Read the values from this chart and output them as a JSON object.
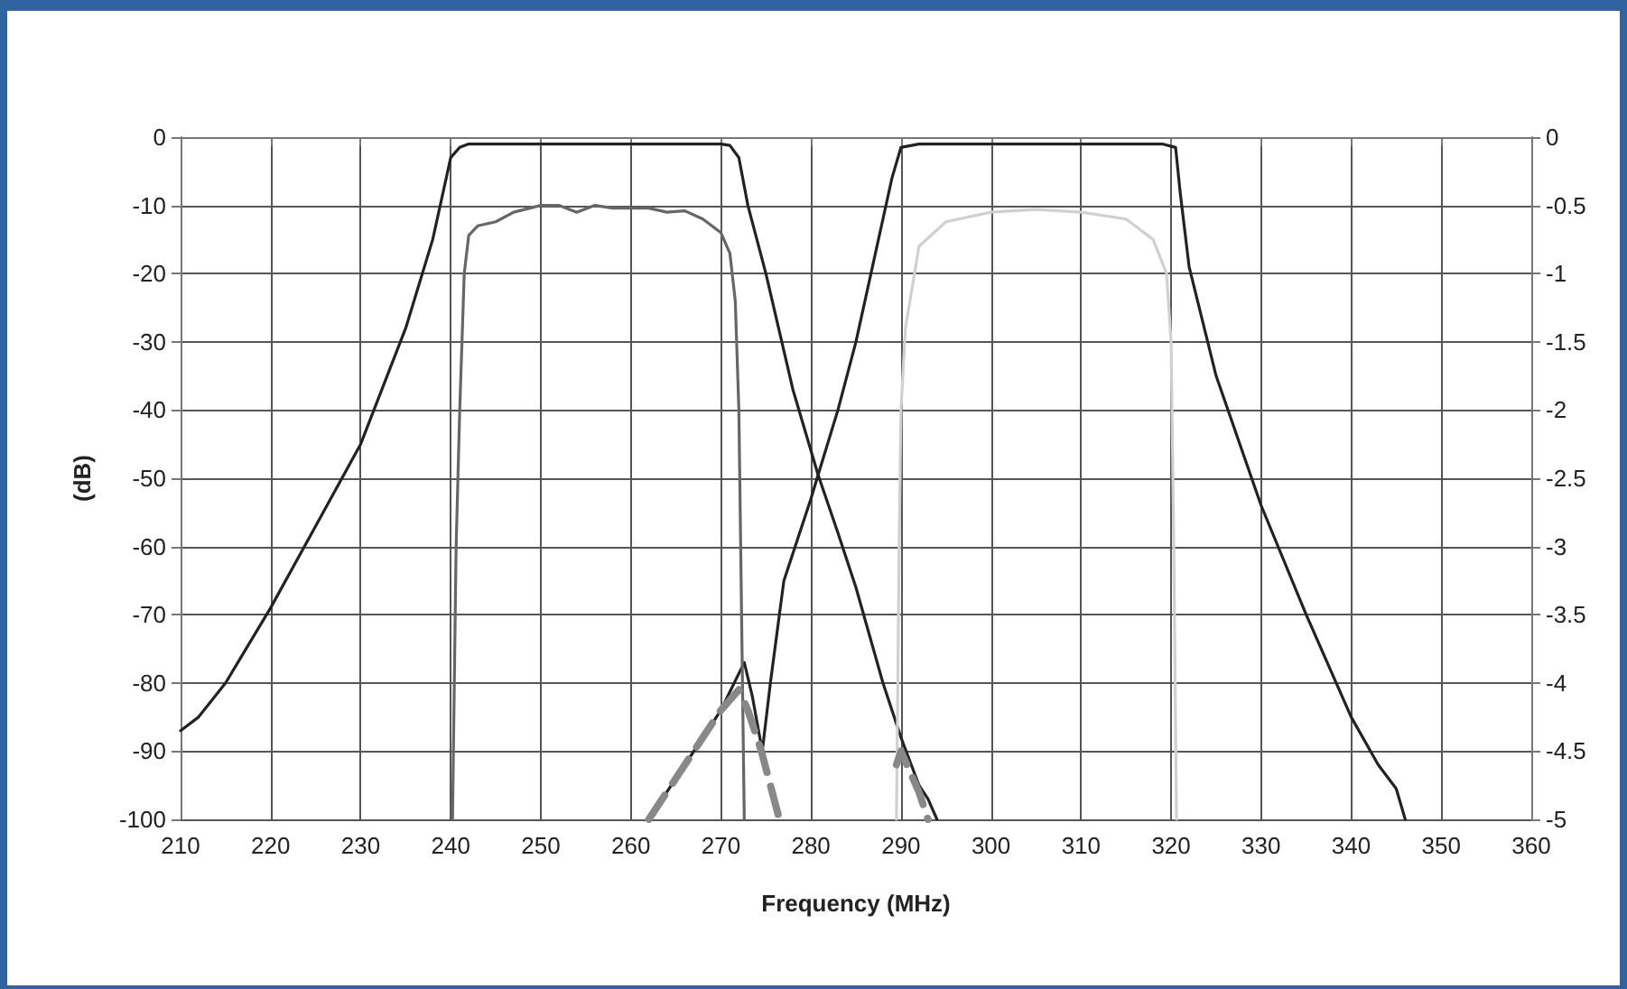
{
  "chart_data": {
    "type": "line",
    "xlabel": "Frequency (MHz)",
    "ylabel": "(dB)",
    "xlim": [
      210,
      360
    ],
    "xticks": [
      210,
      220,
      230,
      240,
      250,
      260,
      270,
      280,
      290,
      300,
      310,
      320,
      330,
      340,
      350,
      360
    ],
    "ylim": [
      -100,
      0
    ],
    "yticks": [
      -100,
      -90,
      -80,
      -70,
      -60,
      -50,
      -40,
      -30,
      -20,
      -10,
      0
    ],
    "y2lim": [
      -5,
      0
    ],
    "y2ticks": [
      -5,
      -4.5,
      -4,
      -3.5,
      -3,
      -2.5,
      -2,
      -1.5,
      -1,
      -0.5,
      0
    ],
    "grid": true,
    "marker": "none",
    "series": [
      {
        "color": "#222222",
        "line_style": "solid",
        "x": [
          210,
          212,
          215,
          220,
          225,
          230,
          235,
          238,
          240,
          241,
          242,
          245,
          250,
          260,
          270,
          271,
          272,
          273,
          275,
          278,
          280.8,
          283,
          285,
          288,
          290,
          292,
          293,
          294
        ],
        "values": [
          -87,
          -85,
          -80,
          -69,
          -57,
          -45,
          -28,
          -15,
          -3,
          -1.5,
          -1,
          -1,
          -1,
          -1,
          -1,
          -1.2,
          -3,
          -10,
          -20,
          -37,
          -49.5,
          -58,
          -66,
          -80,
          -88,
          -95,
          -97,
          -100
        ]
      },
      {
        "color": "#222222",
        "line_style": "solid",
        "x": [
          262,
          265,
          268,
          270,
          272.6,
          273.5,
          274.6,
          275.5,
          277,
          280,
          280.8,
          283,
          285,
          288,
          289,
          290,
          292,
          300,
          310,
          319,
          320.5,
          321,
          322,
          325,
          330,
          335,
          340,
          343,
          345,
          346
        ],
        "values": [
          -100,
          -94,
          -88,
          -84,
          -77,
          -82,
          -90,
          -80,
          -65,
          -53,
          -49.5,
          -40,
          -30,
          -12,
          -6,
          -1.5,
          -1,
          -1,
          -1,
          -1,
          -1.5,
          -8,
          -19,
          -35,
          -54,
          -70,
          -85,
          -92,
          -95.5,
          -100
        ]
      },
      {
        "color": "#666666",
        "line_style": "solid",
        "axis": "y2",
        "x": [
          240.2,
          240.6,
          241,
          241.5,
          242,
          243,
          245,
          247,
          250,
          252,
          254,
          256,
          258,
          260,
          262,
          264,
          266,
          268,
          270,
          271,
          271.6,
          272,
          272.3,
          272.6
        ],
        "values": [
          -5,
          -3,
          -2,
          -1,
          -0.72,
          -0.65,
          -0.62,
          -0.55,
          -0.5,
          -0.5,
          -0.55,
          -0.5,
          -0.52,
          -0.52,
          -0.52,
          -0.55,
          -0.54,
          -0.6,
          -0.7,
          -0.85,
          -1.2,
          -2,
          -3.5,
          -5
        ]
      },
      {
        "color": "#d0d0d0",
        "line_style": "solid",
        "axis": "y2",
        "x": [
          289.5,
          289.8,
          290,
          290.5,
          291,
          292,
          295,
          300,
          305,
          310,
          315,
          318,
          319.5,
          320,
          320.3,
          320.6
        ],
        "values": [
          -5,
          -3,
          -2,
          -1.4,
          -1.2,
          -0.8,
          -0.62,
          -0.55,
          -0.53,
          -0.55,
          -0.6,
          -0.75,
          -1,
          -1.5,
          -3,
          -5
        ]
      },
      {
        "color": "#888888",
        "line_style": "dashed",
        "x": [
          262,
          265,
          268,
          270,
          272,
          273,
          274.5,
          275.5,
          276.5,
          288.5,
          289.5,
          290,
          291,
          292,
          293
        ],
        "values": [
          -100,
          -94,
          -88,
          -84,
          -81,
          -84,
          -90,
          -95,
          -100,
          null,
          -92,
          -90,
          -93,
          -96,
          -100
        ]
      }
    ]
  }
}
